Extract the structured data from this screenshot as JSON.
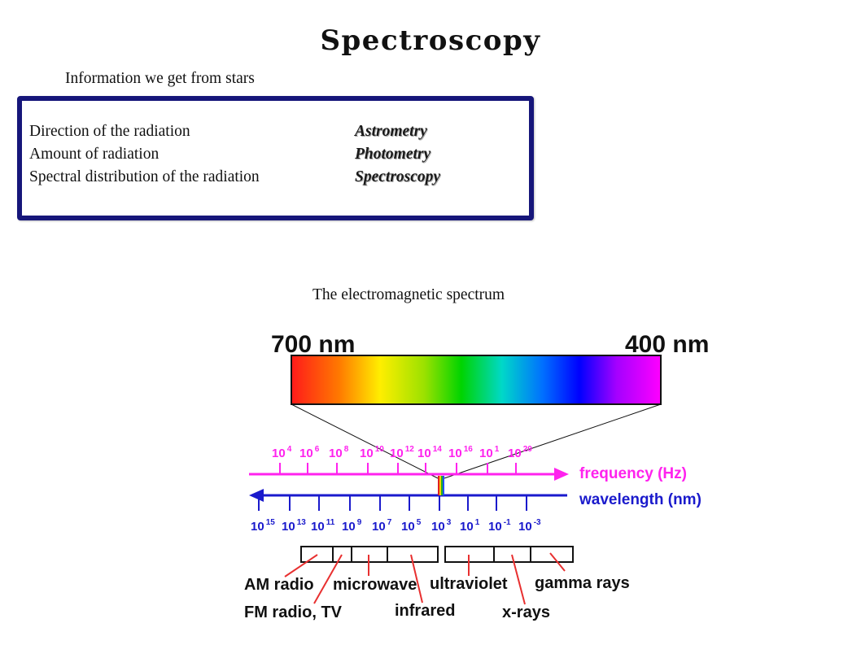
{
  "title": "Spectroscopy",
  "subtitle": "Information we get from stars",
  "info_rows": [
    {
      "label": "Direction of the radiation",
      "value": "Astrometry"
    },
    {
      "label": "Amount of radiation",
      "value": "Photometry"
    },
    {
      "label": "Spectral distribution of the radiation",
      "value": "Spectroscopy"
    }
  ],
  "spectrum": {
    "caption": "The electromagnetic spectrum",
    "left_label": "700 nm",
    "right_label": "400 nm",
    "frequency_axis": {
      "label": "frequency (Hz)",
      "ticks": [
        {
          "base": "10",
          "exp": "4"
        },
        {
          "base": "10",
          "exp": "6"
        },
        {
          "base": "10",
          "exp": "8"
        },
        {
          "base": "10",
          "exp": "10"
        },
        {
          "base": "10",
          "exp": "12"
        },
        {
          "base": "10",
          "exp": "14"
        },
        {
          "base": "10",
          "exp": "16"
        },
        {
          "base": "10",
          "exp": "1"
        },
        {
          "base": "10",
          "exp": "20"
        }
      ]
    },
    "wavelength_axis": {
      "label": "wavelength (nm)",
      "ticks": [
        {
          "base": "10",
          "exp": "15"
        },
        {
          "base": "10",
          "exp": "13"
        },
        {
          "base": "10",
          "exp": "11"
        },
        {
          "base": "10",
          "exp": "9"
        },
        {
          "base": "10",
          "exp": "7"
        },
        {
          "base": "10",
          "exp": "5"
        },
        {
          "base": "10",
          "exp": "3"
        },
        {
          "base": "10",
          "exp": "1"
        },
        {
          "base": "10",
          "exp": "-1"
        },
        {
          "base": "10",
          "exp": "-3"
        }
      ]
    },
    "bands": [
      "AM radio",
      "FM radio, TV",
      "microwave",
      "infrared",
      "ultraviolet",
      "x-rays",
      "gamma rays"
    ],
    "colors": {
      "frequency": "#ff22ee",
      "wavelength": "#1a1acc",
      "band_pointer": "#e83030",
      "frame": "#16167a"
    }
  }
}
